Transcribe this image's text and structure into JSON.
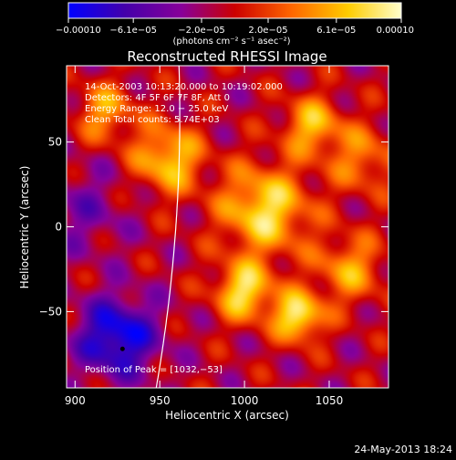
{
  "window": {
    "footer_datetime": "24-May-2013 18:24"
  },
  "colorbar": {
    "tick_labels": [
      "−0.00010",
      "−6.1e−05",
      "−2.0e−05",
      "2.0e−05",
      "6.1e−05",
      "0.00010"
    ],
    "tick_values": [
      -0.0001,
      -6.1e-05,
      -2e-05,
      2e-05,
      6.1e-05,
      0.0001
    ],
    "range": [
      -0.0001,
      0.0001
    ],
    "unit_label": "(photons cm⁻² s⁻¹ asec⁻²)",
    "colormap": [
      "#0000ff",
      "#4400aa",
      "#880099",
      "#cc0000",
      "#ff6600",
      "#ffcc00",
      "#ffffcc"
    ]
  },
  "chart_data": {
    "type": "heatmap",
    "title": "Reconstructed RHESSI Image",
    "xlabel": "Heliocentric X (arcsec)",
    "ylabel": "Heliocentric Y (arcsec)",
    "xlim": [
      895,
      1085
    ],
    "ylim": [
      -95,
      95
    ],
    "xticks": [
      900,
      950,
      1000,
      1050
    ],
    "yticks": [
      50,
      0,
      -50
    ],
    "x_tick_labels": [
      "900",
      "950",
      "1000",
      "1050"
    ],
    "y_tick_labels": [
      "50",
      "0",
      "−50"
    ],
    "grid": false,
    "info_lines": [
      "14-Oct-2003 10:13:20.000 to 10:19:02.000",
      "Detectors: 4F 5F 6F 7F 8F, Att 0",
      "Energy Range: 12.0 − 25.0 keV",
      "Clean      Total counts: 5.74E+03"
    ],
    "peak_annotation": "Position of Peak = [1032,−53]",
    "peak_position": [
      1032,
      -53
    ],
    "limb_marker_position": [
      928,
      -72
    ],
    "sources": [
      {
        "x": 1012,
        "y": 10,
        "amp": 9e-05,
        "s": 18
      },
      {
        "x": 1032,
        "y": -53,
        "amp": 0.0001,
        "s": 10
      },
      {
        "x": 1000,
        "y": -38,
        "amp": 9e-05,
        "s": 12
      },
      {
        "x": 955,
        "y": 40,
        "amp": 8e-05,
        "s": 14
      },
      {
        "x": 918,
        "y": 68,
        "amp": 6e-05,
        "s": 12
      },
      {
        "x": 1040,
        "y": 60,
        "amp": 7e-05,
        "s": 12
      },
      {
        "x": 1062,
        "y": -25,
        "amp": 6e-05,
        "s": 14
      },
      {
        "x": 1070,
        "y": 40,
        "amp": 5e-05,
        "s": 14
      },
      {
        "x": 925,
        "y": -65,
        "amp": -9e-05,
        "s": 16
      },
      {
        "x": 905,
        "y": 10,
        "amp": -3e-05,
        "s": 18
      }
    ]
  }
}
